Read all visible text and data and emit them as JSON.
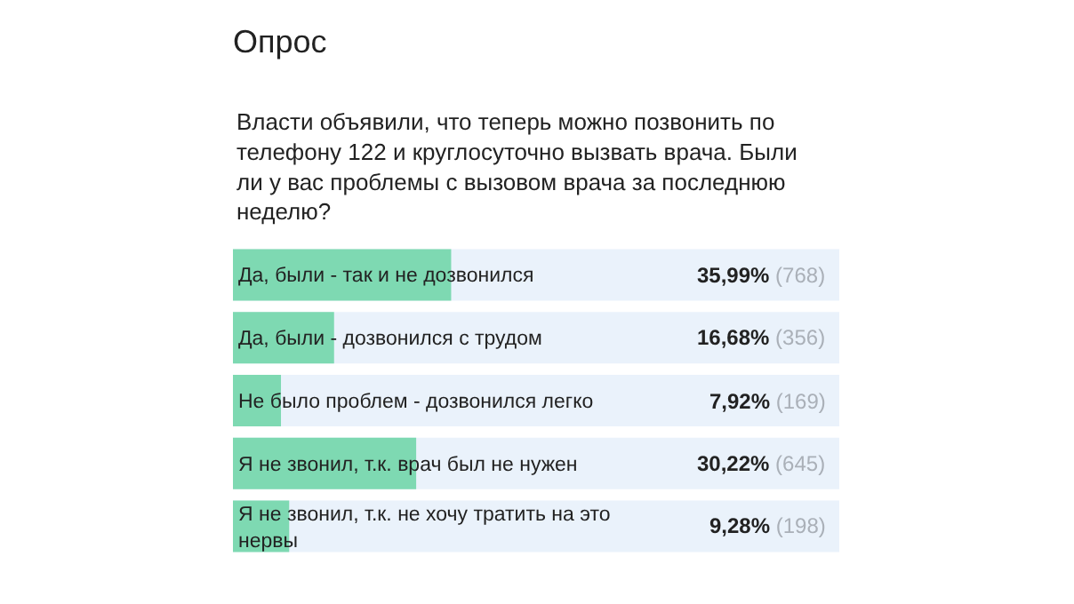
{
  "chart_data": {
    "type": "bar",
    "orientation": "horizontal",
    "title": "Опрос",
    "subtitle": "Власти объявили, что теперь можно позвонить по телефону 122 и круглосуточно вызвать врача. Были ли у вас проблемы с вызовом врача за последнюю неделю?",
    "categories": [
      "Да, были - так и не дозвонился",
      "Да, были - дозвонился с трудом",
      "Не было проблем - дозвонился легко",
      "Я не звонил, т.к. врач был не нужен",
      "Я не звонил, т.к. не хочу тратить на это нервы"
    ],
    "values": [
      35.99,
      16.68,
      7.92,
      30.22,
      9.28
    ],
    "value_labels": [
      "35,99% (768)",
      "16,68% (356)",
      "7,92% (169)",
      "30,22% (645)",
      "9,28% (198)"
    ],
    "color": "#7ed9b2",
    "xlim": [
      0,
      100
    ],
    "tick_labels": "y",
    "legend": false
  }
}
